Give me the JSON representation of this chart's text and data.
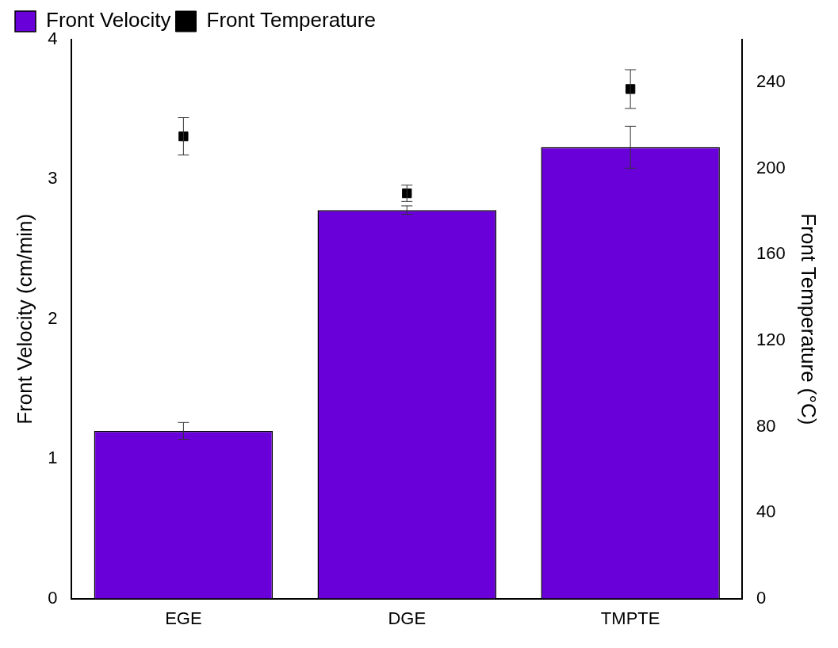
{
  "chart_data": {
    "type": "bar",
    "categories": [
      "EGE",
      "DGE",
      "TMPTE"
    ],
    "ylabel": "Front Velocity (cm/min)",
    "y2label": "Front Temperature (°C)",
    "ylim": [
      0,
      4
    ],
    "yticks": [
      0,
      1,
      2,
      3,
      4
    ],
    "y2lim": [
      0,
      260
    ],
    "y2ticks": [
      0,
      40,
      80,
      120,
      160,
      200,
      240
    ],
    "grid": false,
    "legend": "top left",
    "marker": "square",
    "series": [
      {
        "name": "Front Velocity",
        "color": "#6a00d9",
        "values": [
          1.2,
          2.78,
          3.23
        ],
        "errors": [
          0.06,
          0.03,
          0.15
        ]
      },
      {
        "name": "Front Temperature",
        "type": "scatter",
        "axis": "y2",
        "color": "#000000",
        "values": [
          215,
          188.5,
          237
        ],
        "errors": [
          8.7,
          3.8,
          9
        ]
      }
    ]
  }
}
